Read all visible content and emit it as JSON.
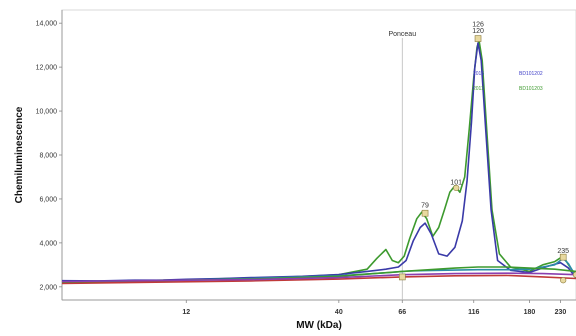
{
  "chart_data": {
    "type": "line",
    "title": "",
    "xlabel": "MW (kDa)",
    "ylabel": "Chemiluminescence",
    "x_tick_labels": [
      "12",
      "40",
      "66",
      "116",
      "180",
      "230"
    ],
    "y_ticks": [
      2000,
      4000,
      6000,
      8000,
      10000,
      12000,
      14000
    ],
    "y_tick_labels": [
      "2,000",
      "4,000",
      "6,000",
      "8,000",
      "10,000",
      "12,000",
      "14,000"
    ],
    "ylim": [
      1400,
      14600
    ],
    "grid": false,
    "reference_line": {
      "label": "Ponceau",
      "x": 66
    },
    "peak_labels": [
      {
        "text": "79",
        "x": 79,
        "y": 5600,
        "series": "green"
      },
      {
        "text": "101",
        "x": 101,
        "y": 6650,
        "series": "green"
      },
      {
        "text": "126",
        "x": 120,
        "y": 13850,
        "series": "green"
      },
      {
        "text": "120",
        "x": 120,
        "y": 13550,
        "series": "blue"
      },
      {
        "text": "235",
        "x": 235,
        "y": 3550,
        "series": "green"
      }
    ],
    "legend": {
      "placement": "top-right",
      "entries": [
        {
          "text": "2016",
          "color": "#4040c8"
        },
        {
          "text": "BD101202",
          "color": "#4040c8"
        },
        {
          "text": "2011",
          "color": "#3d9a2e"
        },
        {
          "text": "BD101203",
          "color": "#3d9a2e"
        }
      ]
    },
    "series": [
      {
        "color": "#3d9a2e",
        "points": [
          [
            4.5,
            2250
          ],
          [
            6,
            2260
          ],
          [
            8,
            2280
          ],
          [
            10,
            2300
          ],
          [
            12,
            2320
          ],
          [
            16,
            2370
          ],
          [
            20,
            2400
          ],
          [
            30,
            2470
          ],
          [
            40,
            2550
          ],
          [
            50,
            2800
          ],
          [
            54,
            3300
          ],
          [
            58,
            3700
          ],
          [
            61,
            3200
          ],
          [
            64,
            3100
          ],
          [
            67,
            3400
          ],
          [
            70,
            4200
          ],
          [
            74,
            5100
          ],
          [
            77,
            5400
          ],
          [
            80,
            5100
          ],
          [
            84,
            4300
          ],
          [
            88,
            4700
          ],
          [
            92,
            5500
          ],
          [
            96,
            6300
          ],
          [
            100,
            6600
          ],
          [
            104,
            6300
          ],
          [
            108,
            7000
          ],
          [
            112,
            9200
          ],
          [
            116,
            11500
          ],
          [
            119,
            12900
          ],
          [
            121,
            13200
          ],
          [
            124,
            12300
          ],
          [
            128,
            9500
          ],
          [
            134,
            5500
          ],
          [
            142,
            3500
          ],
          [
            155,
            2900
          ],
          [
            180,
            2700
          ],
          [
            200,
            3000
          ],
          [
            220,
            3150
          ],
          [
            235,
            3400
          ],
          [
            245,
            3000
          ],
          [
            260,
            2500
          ]
        ]
      },
      {
        "color": "#3a3aa8",
        "points": [
          [
            4.5,
            2280
          ],
          [
            6,
            2270
          ],
          [
            8,
            2300
          ],
          [
            10,
            2310
          ],
          [
            12,
            2340
          ],
          [
            16,
            2380
          ],
          [
            20,
            2420
          ],
          [
            30,
            2480
          ],
          [
            40,
            2560
          ],
          [
            50,
            2700
          ],
          [
            58,
            2800
          ],
          [
            64,
            2900
          ],
          [
            68,
            3200
          ],
          [
            72,
            4100
          ],
          [
            76,
            4700
          ],
          [
            79,
            4900
          ],
          [
            83,
            4400
          ],
          [
            88,
            3500
          ],
          [
            94,
            3400
          ],
          [
            100,
            3800
          ],
          [
            106,
            5000
          ],
          [
            110,
            6800
          ],
          [
            114,
            9500
          ],
          [
            117,
            12000
          ],
          [
            120,
            13100
          ],
          [
            123,
            12300
          ],
          [
            127,
            9500
          ],
          [
            133,
            5500
          ],
          [
            140,
            3200
          ],
          [
            155,
            2750
          ],
          [
            180,
            2650
          ],
          [
            210,
            2950
          ],
          [
            230,
            3100
          ],
          [
            245,
            2850
          ],
          [
            260,
            2400
          ]
        ]
      },
      {
        "color": "#2a8da8",
        "points": [
          [
            4.5,
            2220
          ],
          [
            10,
            2280
          ],
          [
            20,
            2380
          ],
          [
            40,
            2500
          ],
          [
            60,
            2650
          ],
          [
            66,
            2700
          ],
          [
            70,
            2720
          ],
          [
            80,
            2740
          ],
          [
            100,
            2760
          ],
          [
            120,
            2780
          ],
          [
            150,
            2780
          ],
          [
            180,
            2800
          ],
          [
            200,
            2900
          ],
          [
            220,
            3000
          ],
          [
            235,
            3300
          ],
          [
            245,
            3050
          ],
          [
            260,
            2450
          ]
        ]
      },
      {
        "color": "#3d9a2e",
        "points": [
          [
            4.5,
            2200
          ],
          [
            20,
            2350
          ],
          [
            40,
            2480
          ],
          [
            66,
            2700
          ],
          [
            100,
            2850
          ],
          [
            120,
            2900
          ],
          [
            150,
            2900
          ],
          [
            180,
            2850
          ],
          [
            220,
            2800
          ],
          [
            260,
            2700
          ]
        ]
      },
      {
        "color": "#c03a3a",
        "points": [
          [
            4.5,
            2150
          ],
          [
            20,
            2270
          ],
          [
            40,
            2350
          ],
          [
            66,
            2450
          ],
          [
            100,
            2500
          ],
          [
            150,
            2520
          ],
          [
            200,
            2450
          ],
          [
            260,
            2380
          ]
        ]
      },
      {
        "color": "#8a3fb0",
        "points": [
          [
            4.5,
            2240
          ],
          [
            20,
            2330
          ],
          [
            40,
            2420
          ],
          [
            66,
            2550
          ],
          [
            100,
            2600
          ],
          [
            150,
            2620
          ],
          [
            200,
            2600
          ],
          [
            260,
            2550
          ]
        ]
      }
    ],
    "markers": [
      {
        "kind": "square",
        "x": 79,
        "y": 5350,
        "text": ""
      },
      {
        "kind": "circle",
        "x": 101,
        "y": 6500,
        "text": ""
      },
      {
        "kind": "square",
        "x": 120,
        "y": 13300,
        "text": ""
      },
      {
        "kind": "square",
        "x": 235,
        "y": 3350,
        "text": ""
      },
      {
        "kind": "circle",
        "x": 235,
        "y": 2300,
        "text": ""
      },
      {
        "kind": "square",
        "x": 66,
        "y": 2450,
        "text": ""
      },
      {
        "kind": "circle",
        "x": 260,
        "y": 2550,
        "text": ""
      }
    ]
  }
}
